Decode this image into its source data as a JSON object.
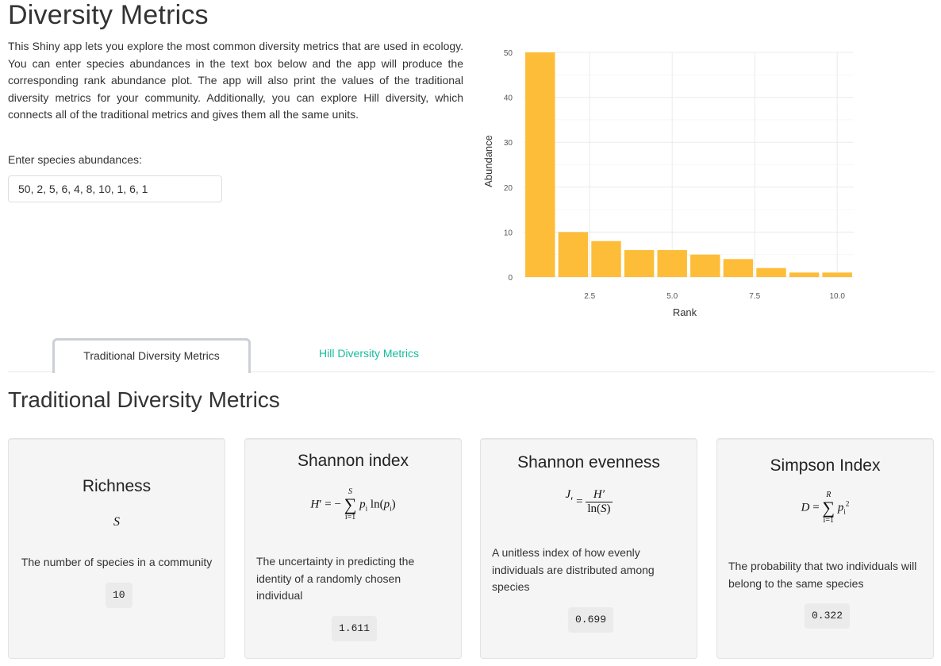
{
  "app": {
    "title": "Diversity Metrics",
    "intro": "This Shiny app lets you explore the most common diversity metrics that are used in ecology. You can enter species abundances in the text box below and the app will produce the corresponding rank abundance plot. The app will also print the values of the traditional diversity metrics for your community. Additionally, you can explore Hill diversity, which connects all of the traditional metrics and gives them all the same units."
  },
  "abundance_input": {
    "label": "Enter species abundances:",
    "value": "50, 2, 5, 6, 4, 8, 10, 1, 6, 1"
  },
  "tabs": [
    {
      "label": "Traditional Diversity Metrics",
      "active": true
    },
    {
      "label": "Hill Diversity Metrics",
      "active": false
    }
  ],
  "section_title": "Traditional Diversity Metrics",
  "cards": [
    {
      "title": "Richness",
      "formula": "S",
      "description": "The number of species in a community",
      "value": "10"
    },
    {
      "title": "Shannon index",
      "formula": "H′ = −∑ pᵢ ln(pᵢ)",
      "description": "The uncertainty in predicting the identity of a randomly chosen individual",
      "value": "1.611"
    },
    {
      "title": "Shannon evenness",
      "formula": "J′ = H′ / ln(S)",
      "description": "A unitless index of how evenly individuals are distributed among species",
      "value": "0.699"
    },
    {
      "title": "Simpson Index",
      "formula": "D = ∑ pᵢ²",
      "description": "The probability that two individuals will belong to the same species",
      "value": "0.322"
    }
  ],
  "colors": {
    "bar": "#FDBD38",
    "accent": "#18bc9c"
  },
  "chart_data": {
    "type": "bar",
    "x": [
      1,
      2,
      3,
      4,
      5,
      6,
      7,
      8,
      9,
      10
    ],
    "values": [
      50,
      10,
      8,
      6,
      6,
      5,
      4,
      2,
      1,
      1
    ],
    "xlabel": "Rank",
    "ylabel": "Abundance",
    "ylim": [
      0,
      50
    ],
    "xlim": [
      0.5,
      10.5
    ],
    "x_ticks": [
      "2.5",
      "5.0",
      "7.5",
      "10.0"
    ],
    "x_tick_values": [
      2.5,
      5.0,
      7.5,
      10.0
    ],
    "y_ticks": [
      "0",
      "10",
      "20",
      "30",
      "40",
      "50"
    ],
    "y_tick_values": [
      0,
      10,
      20,
      30,
      40,
      50
    ],
    "grid": true
  }
}
